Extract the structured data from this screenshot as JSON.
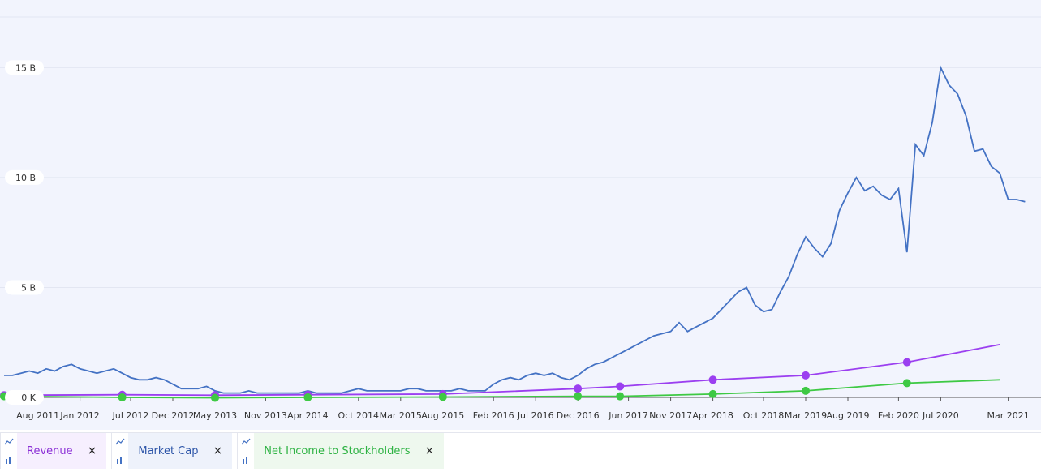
{
  "chart_data": {
    "type": "line",
    "xlim": [
      "Apr 2011",
      "May 2021"
    ],
    "xticks": [
      "Aug 2011",
      "Jan 2012",
      "Jul 2012",
      "Dec 2012",
      "May 2013",
      "Nov 2013",
      "Apr 2014",
      "Oct 2014",
      "Mar 2015",
      "Aug 2015",
      "Feb 2016",
      "Jul 2016",
      "Dec 2016",
      "Jun 2017",
      "Nov 2017",
      "Apr 2018",
      "Oct 2018",
      "Mar 2019",
      "Aug 2019",
      "Feb 2020",
      "Jul 2020",
      "Mar 2021"
    ],
    "ylim": [
      0,
      17.3
    ],
    "yticks": [
      {
        "value": 0,
        "label": "0 K"
      },
      {
        "value": 5,
        "label": "5 B"
      },
      {
        "value": 10,
        "label": "10 B"
      },
      {
        "value": 15,
        "label": "15 B"
      }
    ],
    "grid": true,
    "series": [
      {
        "name": "Revenue",
        "color": "#9b3ff0",
        "markers": true,
        "x": [
          "Apr 2011",
          "Jun 2012",
          "May 2013",
          "Apr 2014",
          "Aug 2015",
          "Dec 2016",
          "May 2017",
          "Apr 2018",
          "Mar 2019",
          "Mar 2020",
          "Feb 2021"
        ],
        "values": [
          0.1,
          0.12,
          0.1,
          0.12,
          0.15,
          0.4,
          0.5,
          0.8,
          1.0,
          1.6,
          2.4
        ]
      },
      {
        "name": "Market Cap",
        "color": "#4472c4",
        "markers": false,
        "x": [
          "Apr 2011",
          "May 2011",
          "Jun 2011",
          "Jul 2011",
          "Aug 2011",
          "Sep 2011",
          "Oct 2011",
          "Nov 2011",
          "Dec 2011",
          "Jan 2012",
          "Feb 2012",
          "Mar 2012",
          "Apr 2012",
          "May 2012",
          "Jun 2012",
          "Jul 2012",
          "Aug 2012",
          "Sep 2012",
          "Oct 2012",
          "Nov 2012",
          "Dec 2012",
          "Jan 2013",
          "Feb 2013",
          "Mar 2013",
          "Apr 2013",
          "May 2013",
          "Jun 2013",
          "Jul 2013",
          "Aug 2013",
          "Sep 2013",
          "Oct 2013",
          "Nov 2013",
          "Dec 2013",
          "Jan 2014",
          "Feb 2014",
          "Mar 2014",
          "Apr 2014",
          "May 2014",
          "Jun 2014",
          "Jul 2014",
          "Aug 2014",
          "Sep 2014",
          "Oct 2014",
          "Nov 2014",
          "Dec 2014",
          "Jan 2015",
          "Feb 2015",
          "Mar 2015",
          "Apr 2015",
          "May 2015",
          "Jun 2015",
          "Jul 2015",
          "Aug 2015",
          "Sep 2015",
          "Oct 2015",
          "Nov 2015",
          "Dec 2015",
          "Jan 2016",
          "Feb 2016",
          "Mar 2016",
          "Apr 2016",
          "May 2016",
          "Jun 2016",
          "Jul 2016",
          "Aug 2016",
          "Sep 2016",
          "Oct 2016",
          "Nov 2016",
          "Dec 2016",
          "Jan 2017",
          "Feb 2017",
          "Mar 2017",
          "Apr 2017",
          "May 2017",
          "Jun 2017",
          "Jul 2017",
          "Aug 2017",
          "Sep 2017",
          "Oct 2017",
          "Nov 2017",
          "Dec 2017",
          "Jan 2018",
          "Feb 2018",
          "Mar 2018",
          "Apr 2018",
          "May 2018",
          "Jun 2018",
          "Jul 2018",
          "Aug 2018",
          "Sep 2018",
          "Oct 2018",
          "Nov 2018",
          "Dec 2018",
          "Jan 2019",
          "Feb 2019",
          "Mar 2019",
          "Apr 2019",
          "May 2019",
          "Jun 2019",
          "Jul 2019",
          "Aug 2019",
          "Sep 2019",
          "Oct 2019",
          "Nov 2019",
          "Dec 2019",
          "Jan 2020",
          "Feb 2020",
          "Mar 2020",
          "Apr 2020",
          "May 2020",
          "Jun 2020",
          "Jul 2020",
          "Aug 2020",
          "Sep 2020",
          "Oct 2020",
          "Nov 2020",
          "Dec 2020",
          "Jan 2021",
          "Feb 2021",
          "Mar 2021",
          "Apr 2021",
          "May 2021"
        ],
        "values": [
          1.0,
          1.0,
          1.1,
          1.2,
          1.1,
          1.3,
          1.2,
          1.4,
          1.5,
          1.3,
          1.2,
          1.1,
          1.2,
          1.3,
          1.1,
          0.9,
          0.8,
          0.8,
          0.9,
          0.8,
          0.6,
          0.4,
          0.4,
          0.4,
          0.5,
          0.3,
          0.2,
          0.2,
          0.2,
          0.3,
          0.2,
          0.2,
          0.2,
          0.2,
          0.2,
          0.2,
          0.3,
          0.2,
          0.2,
          0.2,
          0.2,
          0.3,
          0.4,
          0.3,
          0.3,
          0.3,
          0.3,
          0.3,
          0.4,
          0.4,
          0.3,
          0.3,
          0.3,
          0.3,
          0.4,
          0.3,
          0.3,
          0.3,
          0.6,
          0.8,
          0.9,
          0.8,
          1.0,
          1.1,
          1.0,
          1.1,
          0.9,
          0.8,
          1.0,
          1.3,
          1.5,
          1.6,
          1.8,
          2.0,
          2.2,
          2.4,
          2.6,
          2.8,
          2.9,
          3.0,
          3.4,
          3.0,
          3.2,
          3.4,
          3.6,
          4.0,
          4.4,
          4.8,
          5.0,
          4.2,
          3.9,
          4.0,
          4.8,
          5.5,
          6.5,
          7.3,
          6.8,
          6.4,
          7.0,
          8.5,
          9.3,
          10.0,
          9.4,
          9.6,
          9.2,
          9.0,
          9.5,
          6.6,
          11.5,
          11.0,
          12.5,
          15.0,
          14.2,
          13.8,
          12.8,
          11.2,
          11.3,
          10.5,
          10.2,
          9.0,
          9.0,
          8.9
        ]
      },
      {
        "name": "Net Income to Stockholders",
        "color": "#3ec944",
        "markers": true,
        "x": [
          "Apr 2011",
          "Jun 2012",
          "May 2013",
          "Apr 2014",
          "Aug 2015",
          "Dec 2016",
          "May 2017",
          "Apr 2018",
          "Mar 2019",
          "Mar 2020",
          "Feb 2021"
        ],
        "values": [
          0.05,
          0.0,
          -0.02,
          0.0,
          0.02,
          0.05,
          0.05,
          0.15,
          0.3,
          0.65,
          0.8
        ]
      }
    ]
  }
}
